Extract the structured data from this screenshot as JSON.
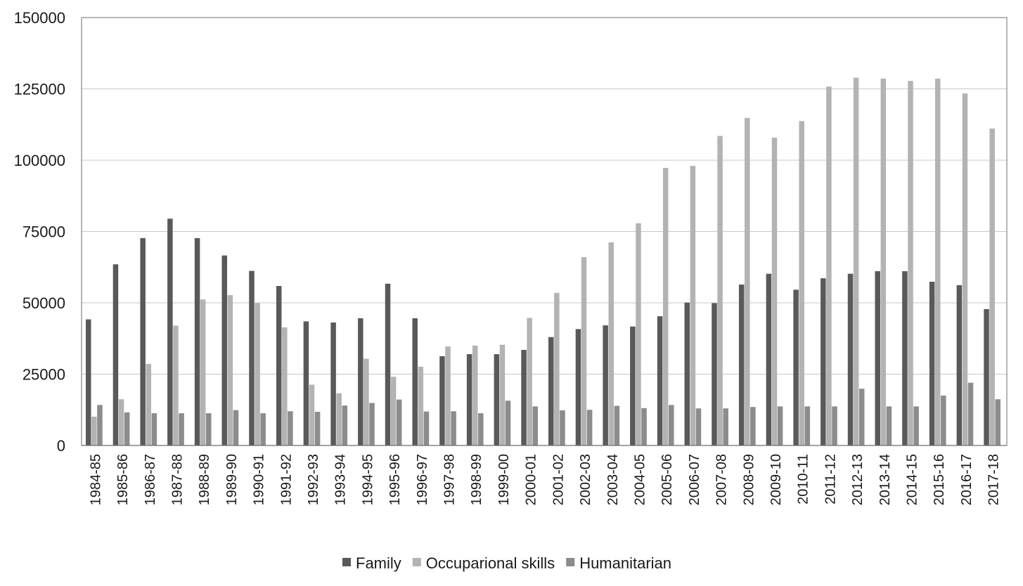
{
  "chart_data": {
    "type": "bar",
    "title": "",
    "xlabel": "",
    "ylabel": "",
    "ylim": [
      0,
      150000
    ],
    "yticks": [
      0,
      25000,
      50000,
      75000,
      100000,
      125000,
      150000
    ],
    "grid": true,
    "legend_position": "bottom",
    "categories": [
      "1984-85",
      "1985-86",
      "1986-87",
      "1987-88",
      "1988-89",
      "1989-90",
      "1990-91",
      "1991-92",
      "1992-93",
      "1993-94",
      "1994-95",
      "1995-96",
      "1996-97",
      "1997-98",
      "1998-99",
      "1999-00",
      "2000-01",
      "2001-02",
      "2002-03",
      "2003-04",
      "2004-05",
      "2005-06",
      "2006-07",
      "2007-08",
      "2008-09",
      "2009-10",
      "2010-11",
      "2011-12",
      "2012-13",
      "2013-14",
      "2014-15",
      "2015-16",
      "2016-17",
      "2017-18"
    ],
    "series": [
      {
        "name": "Family",
        "color": "#595959",
        "values": [
          44200,
          63500,
          72700,
          79500,
          72700,
          66600,
          61200,
          55900,
          43500,
          43100,
          44600,
          56700,
          44600,
          31300,
          32000,
          32000,
          33500,
          38000,
          40800,
          42100,
          41700,
          45300,
          50100,
          49900,
          56400,
          60200,
          54600,
          58600,
          60200,
          61100,
          61100,
          57400,
          56200,
          47800
        ]
      },
      {
        "name": "Occuparional skills",
        "color": "#b3b3b3",
        "values": [
          10100,
          16200,
          28600,
          42000,
          51200,
          52700,
          49900,
          41400,
          21300,
          18300,
          30400,
          24100,
          27600,
          34700,
          35000,
          35300,
          44700,
          53500,
          66000,
          71200,
          77900,
          97300,
          98000,
          108500,
          114800,
          107900,
          113700,
          125800,
          128900,
          128600,
          127800,
          128600,
          123400,
          111100
        ]
      },
      {
        "name": "Humanitarian",
        "color": "#8c8c8c",
        "values": [
          14200,
          11600,
          11300,
          11300,
          11300,
          12400,
          11300,
          12000,
          11800,
          14000,
          14900,
          16100,
          11900,
          12000,
          11300,
          15700,
          13700,
          12300,
          12500,
          13900,
          13100,
          14200,
          13000,
          13000,
          13500,
          13700,
          13700,
          13700,
          19900,
          13700,
          13700,
          17500,
          22000,
          16200
        ]
      }
    ]
  }
}
